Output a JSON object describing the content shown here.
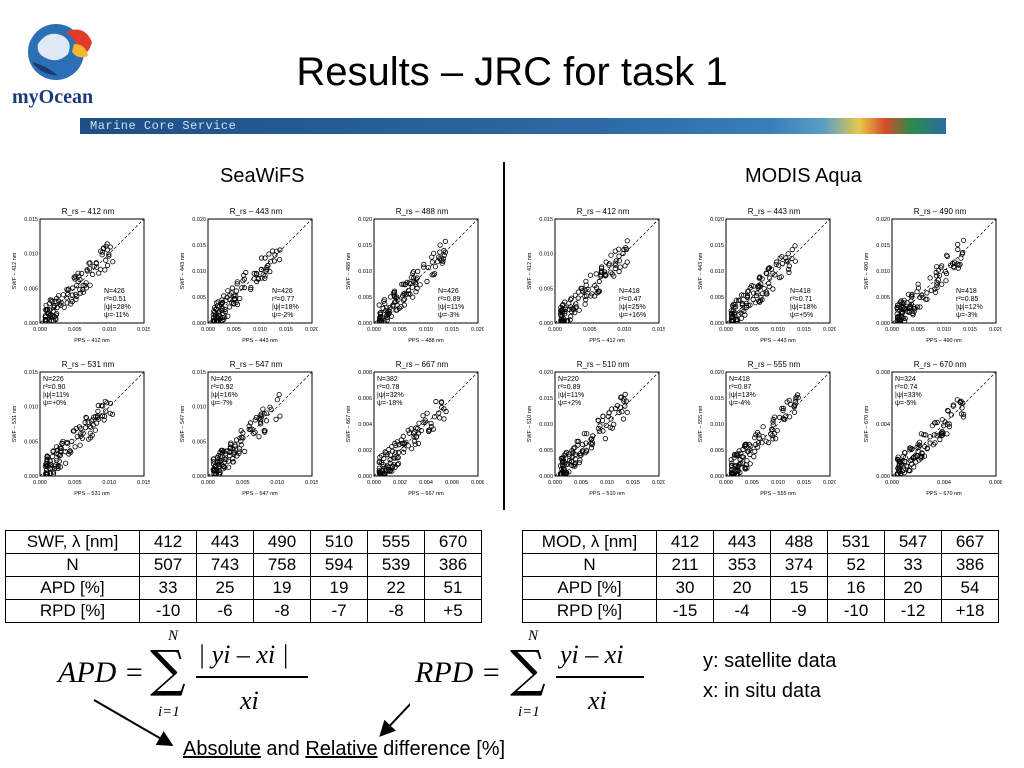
{
  "header": {
    "title": "Results – JRC for task 1",
    "brand": "myOcean",
    "banner_text": "Marine Core Service"
  },
  "sections": {
    "left_label": "SeaWiFS",
    "right_label": "MODIS Aqua"
  },
  "seawifs_panels": [
    {
      "title": "R_rs – 412 nm",
      "xlabel": "PPS – 412 nm",
      "ylabel": "SWF – 412 nm",
      "stats": [
        "N=426",
        "r²=0.51",
        "|ψ|=28%",
        "ψ=-11%"
      ],
      "xticks": [
        "0.000",
        "0.005",
        "0.010",
        "0.015"
      ],
      "yticks": [
        "0.000",
        "0.005",
        "0.010",
        "0.015"
      ]
    },
    {
      "title": "R_rs – 443 nm",
      "xlabel": "PPS – 443 nm",
      "ylabel": "SWF – 443 nm",
      "stats": [
        "N=426",
        "r²=0.77",
        "|ψ|=18%",
        "ψ=-2%"
      ],
      "xticks": [
        "0.000",
        "0.005",
        "0.010",
        "0.015",
        "0.020"
      ],
      "yticks": [
        "0.000",
        "0.005",
        "0.010",
        "0.015",
        "0.020"
      ]
    },
    {
      "title": "R_rs – 488 nm",
      "xlabel": "PPS – 488 nm",
      "ylabel": "SWF – 488 nm",
      "stats": [
        "N=426",
        "r²=0.89",
        "|ψ|=11%",
        "ψ=-3%"
      ],
      "xticks": [
        "0.000",
        "0.005",
        "0.010",
        "0.015",
        "0.020"
      ],
      "yticks": [
        "0.000",
        "0.005",
        "0.010",
        "0.015",
        "0.020"
      ]
    },
    {
      "title": "R_rs – 531 nm",
      "xlabel": "PPS – 531 nm",
      "ylabel": "SWF – 531 nm",
      "stats": [
        "N=226",
        "r²=0.90",
        "|ψ|=11%",
        "ψ=+0%"
      ],
      "xticks": [
        "0.000",
        "0.005",
        "0.010",
        "0.015"
      ],
      "yticks": [
        "0.000",
        "0.005",
        "0.010",
        "0.015"
      ]
    },
    {
      "title": "R_rs – 547 nm",
      "xlabel": "PPS – 547 nm",
      "ylabel": "SWF – 547 nm",
      "stats": [
        "N=426",
        "r²=0.92",
        "|ψ|=16%",
        "ψ=-7%"
      ],
      "xticks": [
        "0.000",
        "0.005",
        "0.010",
        "0.015"
      ],
      "yticks": [
        "0.000",
        "0.005",
        "0.010",
        "0.015"
      ]
    },
    {
      "title": "R_rs – 667 nm",
      "xlabel": "PPS – 667 nm",
      "ylabel": "SWF – 667 nm",
      "stats": [
        "N=382",
        "r²=0.78",
        "|ψ|=32%",
        "ψ=-18%"
      ],
      "xticks": [
        "0.000",
        "0.002",
        "0.004",
        "0.006",
        "0.008"
      ],
      "yticks": [
        "0.000",
        "0.002",
        "0.004",
        "0.006",
        "0.008"
      ]
    }
  ],
  "modis_panels": [
    {
      "title": "R_rs – 412 nm",
      "xlabel": "PPS – 412 nm",
      "ylabel": "SWF – 412 nm",
      "stats": [
        "N=418",
        "r²=0.47",
        "|ψ|=25%",
        "ψ=+16%"
      ],
      "xticks": [
        "0.000",
        "0.005",
        "0.010",
        "0.015"
      ],
      "yticks": [
        "0.000",
        "0.005",
        "0.010",
        "0.015"
      ]
    },
    {
      "title": "R_rs – 443 nm",
      "xlabel": "PPS – 443 nm",
      "ylabel": "SWF – 443 nm",
      "stats": [
        "N=418",
        "r²=0.71",
        "|ψ|=18%",
        "ψ=+5%"
      ],
      "xticks": [
        "0.000",
        "0.005",
        "0.010",
        "0.015",
        "0.020"
      ],
      "yticks": [
        "0.000",
        "0.005",
        "0.010",
        "0.015",
        "0.020"
      ]
    },
    {
      "title": "R_rs – 490 nm",
      "xlabel": "PPS – 490 nm",
      "ylabel": "SWF – 490 nm",
      "stats": [
        "N=418",
        "r²=0.85",
        "|ψ|=12%",
        "ψ=-3%"
      ],
      "xticks": [
        "0.000",
        "0.005",
        "0.010",
        "0.015",
        "0.020"
      ],
      "yticks": [
        "0.000",
        "0.005",
        "0.010",
        "0.015",
        "0.020"
      ]
    },
    {
      "title": "R_rs – 510 nm",
      "xlabel": "PPS – 510 nm",
      "ylabel": "SWF – 510 nm",
      "stats": [
        "N=220",
        "r²=0.89",
        "|ψ|=11%",
        "ψ=+2%"
      ],
      "xticks": [
        "0.000",
        "0.005",
        "0.010",
        "0.015",
        "0.020"
      ],
      "yticks": [
        "0.000",
        "0.005",
        "0.010",
        "0.015",
        "0.020"
      ]
    },
    {
      "title": "R_rs – 555 nm",
      "xlabel": "PPS – 555 nm",
      "ylabel": "SWF – 555 nm",
      "stats": [
        "N=418",
        "r²=0.87",
        "|ψ|=13%",
        "ψ=-4%"
      ],
      "xticks": [
        "0.000",
        "0.005",
        "0.010",
        "0.015",
        "0.020"
      ],
      "yticks": [
        "0.000",
        "0.005",
        "0.010",
        "0.015",
        "0.020"
      ]
    },
    {
      "title": "R_rs – 670 nm",
      "xlabel": "PPS – 670 nm",
      "ylabel": "SWF – 670 nm",
      "stats": [
        "N=324",
        "r²=0.74",
        "|ψ|=33%",
        "ψ=-5%"
      ],
      "xticks": [
        "0.000",
        "0.004",
        "0.008"
      ],
      "yticks": [
        "0.000",
        "0.004",
        "0.008"
      ]
    }
  ],
  "swf_table": {
    "rows": [
      [
        "SWF, λ [nm]",
        "412",
        "443",
        "490",
        "510",
        "555",
        "670"
      ],
      [
        "N",
        "507",
        "743",
        "758",
        "594",
        "539",
        "386"
      ],
      [
        "APD [%]",
        "33",
        "25",
        "19",
        "19",
        "22",
        "51"
      ],
      [
        "RPD [%]",
        "-10",
        "-6",
        "-8",
        "-7",
        "-8",
        "+5"
      ]
    ]
  },
  "mod_table": {
    "rows": [
      [
        "MOD, λ [nm]",
        "412",
        "443",
        "488",
        "531",
        "547",
        "667"
      ],
      [
        "N",
        "211",
        "353",
        "374",
        "52",
        "33",
        "386"
      ],
      [
        "APD [%]",
        "30",
        "20",
        "15",
        "16",
        "20",
        "54"
      ],
      [
        "RPD [%]",
        "-15",
        "-4",
        "-9",
        "-10",
        "-12",
        "+18"
      ]
    ]
  },
  "formulas": {
    "apd_lhs": "APD",
    "rpd_lhs": "RPD",
    "sum_upper": "N",
    "sum_lower": "i=1",
    "apd_num": "| yi – xi |",
    "rpd_num": "yi – xi",
    "den": "xi"
  },
  "legend": {
    "y": "y: satellite data",
    "x": "x: in situ data"
  },
  "caption": {
    "abs": "Absolute",
    "and": "and",
    "rel": "Relative",
    "rest": "difference [%]"
  }
}
